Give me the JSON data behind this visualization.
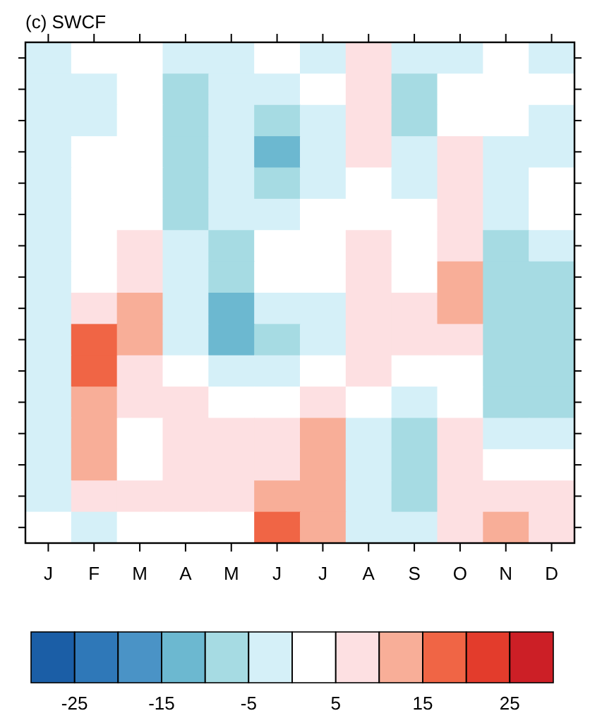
{
  "chart_data": {
    "type": "heatmap",
    "title": "(c) SWCF",
    "categories": [
      "J",
      "F",
      "M",
      "A",
      "M",
      "J",
      "J",
      "A",
      "S",
      "O",
      "N",
      "D"
    ],
    "y_categories": [
      null,
      null,
      null,
      null,
      null,
      null,
      null,
      null,
      null,
      null,
      null,
      null,
      null,
      null,
      null,
      null
    ],
    "cells": [
      [
        -2.5,
        2.5,
        2.5,
        -2.5,
        -2.5,
        2.5,
        -2.5,
        7.5,
        -2.5,
        -2.5,
        2.5,
        -2.5
      ],
      [
        -2.5,
        -2.5,
        2.5,
        -7.5,
        -2.5,
        -2.5,
        2.5,
        7.5,
        -7.5,
        2.5,
        2.5,
        2.5
      ],
      [
        -2.5,
        -2.5,
        2.5,
        -7.5,
        -2.5,
        -7.5,
        -2.5,
        7.5,
        -7.5,
        2.5,
        2.5,
        -2.5
      ],
      [
        -2.5,
        2.5,
        2.5,
        -7.5,
        -2.5,
        -12.5,
        -2.5,
        7.5,
        -2.5,
        7.5,
        -2.5,
        -2.5
      ],
      [
        -2.5,
        2.5,
        2.5,
        -7.5,
        -2.5,
        -7.5,
        -2.5,
        2.5,
        -2.5,
        7.5,
        -2.5,
        2.5
      ],
      [
        -2.5,
        2.5,
        2.5,
        -7.5,
        -2.5,
        -2.5,
        2.5,
        2.5,
        2.5,
        7.5,
        -2.5,
        2.5
      ],
      [
        -2.5,
        2.5,
        7.5,
        -2.5,
        -7.5,
        2.5,
        2.5,
        7.5,
        2.5,
        7.5,
        -7.5,
        -2.5
      ],
      [
        -2.5,
        2.5,
        7.5,
        -2.5,
        -7.5,
        2.5,
        2.5,
        7.5,
        2.5,
        12.5,
        -7.5,
        -7.5
      ],
      [
        -2.5,
        7.5,
        12.5,
        -2.5,
        -12.5,
        -2.5,
        -2.5,
        7.5,
        7.5,
        12.5,
        -7.5,
        -7.5
      ],
      [
        -2.5,
        17.5,
        12.5,
        -2.5,
        -12.5,
        -7.5,
        -2.5,
        7.5,
        7.5,
        7.5,
        -7.5,
        -7.5
      ],
      [
        -2.5,
        17.5,
        7.5,
        2.5,
        -2.5,
        -2.5,
        2.5,
        7.5,
        2.5,
        2.5,
        -7.5,
        -7.5
      ],
      [
        -2.5,
        12.5,
        7.5,
        7.5,
        2.5,
        2.5,
        7.5,
        2.5,
        -2.5,
        2.5,
        -7.5,
        -7.5
      ],
      [
        -2.5,
        12.5,
        2.5,
        7.5,
        7.5,
        7.5,
        12.5,
        -2.5,
        -7.5,
        7.5,
        -2.5,
        -2.5
      ],
      [
        -2.5,
        12.5,
        2.5,
        7.5,
        7.5,
        7.5,
        12.5,
        -2.5,
        -7.5,
        7.5,
        2.5,
        2.5
      ],
      [
        -2.5,
        7.5,
        7.5,
        7.5,
        7.5,
        12.5,
        12.5,
        -2.5,
        -7.5,
        7.5,
        7.5,
        7.5
      ],
      [
        2.5,
        -2.5,
        2.5,
        2.5,
        2.5,
        17.5,
        12.5,
        -2.5,
        -2.5,
        7.5,
        12.5,
        7.5
      ]
    ],
    "clim": [
      -30,
      30
    ],
    "cticks": [
      -25,
      {
        "value": -20,
        "label": null
      },
      -15,
      {
        "value": -10,
        "label": null
      },
      -5,
      {
        "value": 0,
        "label": null
      },
      5,
      {
        "value": 10,
        "label": null
      },
      15,
      {
        "value": 20,
        "label": null
      },
      25
    ],
    "colors": [
      "#1b5ea6",
      "#2f78b8",
      "#4a93c6",
      "#6cb8d0",
      "#a6dbe3",
      "#d5f0f8",
      "#ffffff",
      "#fde0e2",
      "#f8ae98",
      "#f06545",
      "#e33c2c",
      "#cc1f26"
    ],
    "tick_labels": "x"
  }
}
